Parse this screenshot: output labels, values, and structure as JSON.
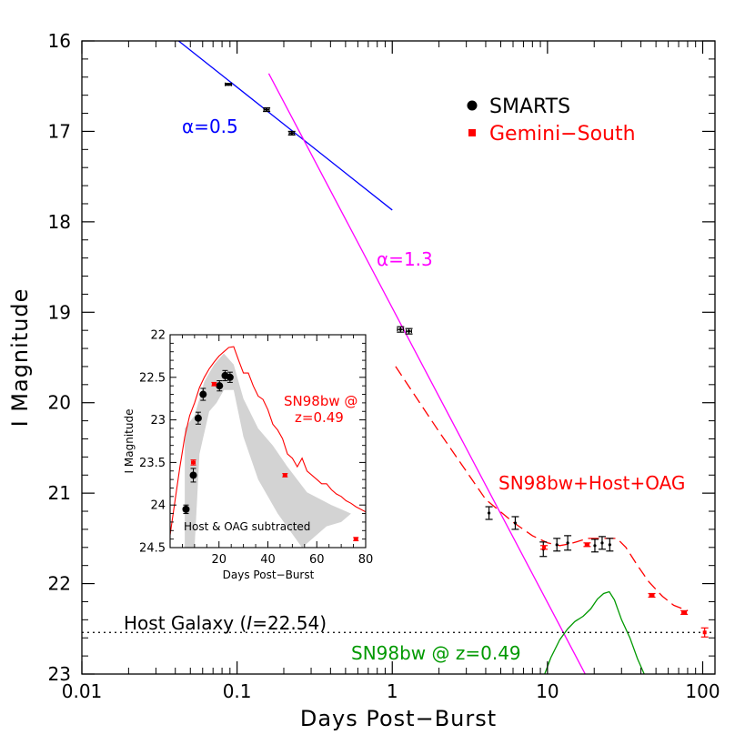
{
  "chart_data": [
    {
      "type": "scatter",
      "xlabel": "Days Post−Burst",
      "ylabel": "I Magnitude",
      "xscale": "log",
      "xlim": [
        0.01,
        120
      ],
      "ylim": [
        23,
        16
      ],
      "y_inverted": true,
      "xticks": [
        "0.01",
        "0.1",
        "1",
        "10",
        "100"
      ],
      "yticks": [
        "16",
        "17",
        "18",
        "19",
        "20",
        "21",
        "22",
        "23"
      ],
      "legend": {
        "placement": "top-right",
        "entries": [
          {
            "label": "SMARTS",
            "color": "#000000",
            "marker": "circle"
          },
          {
            "label": "Gemini−South",
            "color": "#ff0000",
            "marker": "square"
          }
        ]
      },
      "series": [
        {
          "name": "SMARTS",
          "color": "#000000",
          "points": [
            {
              "x": 0.088,
              "y": 16.48,
              "err": 0.01,
              "xerr": 0.004
            },
            {
              "x": 0.155,
              "y": 16.76,
              "err": 0.02,
              "xerr": 0.006
            },
            {
              "x": 0.225,
              "y": 17.02,
              "err": 0.02,
              "xerr": 0.008
            },
            {
              "x": 1.13,
              "y": 19.19,
              "err": 0.03,
              "xerr": 0.05
            },
            {
              "x": 1.28,
              "y": 19.21,
              "err": 0.03,
              "xerr": 0.05
            },
            {
              "x": 4.2,
              "y": 21.22,
              "err": 0.07,
              "xerr": 0
            },
            {
              "x": 6.2,
              "y": 21.33,
              "err": 0.07,
              "xerr": 0
            },
            {
              "x": 9.4,
              "y": 21.62,
              "err": 0.08,
              "xerr": 0
            },
            {
              "x": 11.5,
              "y": 21.57,
              "err": 0.07,
              "xerr": 0
            },
            {
              "x": 13.5,
              "y": 21.55,
              "err": 0.08,
              "xerr": 0
            },
            {
              "x": 20.2,
              "y": 21.58,
              "err": 0.07,
              "xerr": 0
            },
            {
              "x": 22.5,
              "y": 21.55,
              "err": 0.07,
              "xerr": 0
            },
            {
              "x": 25.2,
              "y": 21.57,
              "err": 0.07,
              "xerr": 0
            }
          ]
        },
        {
          "name": "Gemini−South",
          "color": "#ff0000",
          "points": [
            {
              "x": 9.5,
              "y": 21.6,
              "err": 0.02,
              "xerr": 0
            },
            {
              "x": 18.0,
              "y": 21.57,
              "err": 0.02,
              "xerr": 0.5
            },
            {
              "x": 47.0,
              "y": 22.13,
              "err": 0.02,
              "xerr": 1.5
            },
            {
              "x": 76.0,
              "y": 22.32,
              "err": 0.02,
              "xerr": 2.5
            },
            {
              "x": 103.0,
              "y": 22.54,
              "err": 0.05,
              "xerr": 0
            }
          ]
        }
      ],
      "lines": [
        {
          "label": "α=0.5",
          "color": "#0000ff",
          "x": [
            0.042,
            1.0
          ],
          "y": [
            16.0,
            17.87
          ]
        },
        {
          "label": "α=1.3",
          "color": "#ff00ff",
          "x": [
            0.16,
            17.5
          ],
          "y": [
            16.36,
            23.0
          ]
        }
      ],
      "curves": [
        {
          "label": "SN98bw+Host+OAG",
          "color": "#ff0000",
          "dash": "dashed",
          "x": [
            1.05,
            2.0,
            4.0,
            6.0,
            8.0,
            10.0,
            12.0,
            14.0,
            16.0,
            18.0,
            20.0,
            22.0,
            25.0,
            28.0,
            32.0,
            38.0,
            45.0,
            55.0,
            65.0,
            80.0
          ],
          "y": [
            19.6,
            20.32,
            21.07,
            21.32,
            21.47,
            21.55,
            21.58,
            21.56,
            21.53,
            21.5,
            21.5,
            21.5,
            21.5,
            21.5,
            21.6,
            21.8,
            21.98,
            22.14,
            22.24,
            22.3
          ]
        },
        {
          "label": "SN98bw @ z=0.49",
          "color": "#009900",
          "dash": "solid",
          "x": [
            9.6,
            10.5,
            12.0,
            13.5,
            15.0,
            17.0,
            19.0,
            21.0,
            23.0,
            25.0,
            27.0,
            30.0,
            34.0,
            38.0,
            42.0
          ],
          "y": [
            23.0,
            22.82,
            22.62,
            22.5,
            22.42,
            22.36,
            22.28,
            22.17,
            22.11,
            22.09,
            22.18,
            22.4,
            22.6,
            22.83,
            23.0
          ]
        }
      ],
      "hline": {
        "label": "Host Galaxy (I=22.54)",
        "y": 22.54,
        "style": "dotted"
      },
      "annotations": {
        "alpha_blue": "α=0.5",
        "alpha_magenta": "α=1.3",
        "sn_host": "SN98bw+Host+OAG",
        "sn_green": "SN98bw @ z=0.49",
        "host_prefix": "Host Galaxy (",
        "host_italic": "I",
        "host_suffix": "=22.54)"
      }
    },
    {
      "type": "scatter",
      "title": "Host & OAG subtracted",
      "xlabel": "Days Post−Burst",
      "ylabel": "I Magnitude",
      "xlim": [
        0,
        80
      ],
      "ylim": [
        24.5,
        22
      ],
      "y_inverted": true,
      "xticks": [
        "20",
        "40",
        "60",
        "80"
      ],
      "yticks": [
        "22",
        "22.5",
        "23",
        "23.5",
        "24",
        "24.5"
      ],
      "series": [
        {
          "name": "SMARTS",
          "color": "#000000",
          "points": [
            {
              "x": 6.5,
              "y": 24.05,
              "err": 0.05
            },
            {
              "x": 9.5,
              "y": 23.65,
              "err": 0.08
            },
            {
              "x": 11.5,
              "y": 22.98,
              "err": 0.07
            },
            {
              "x": 13.5,
              "y": 22.7,
              "err": 0.07
            },
            {
              "x": 20.2,
              "y": 22.6,
              "err": 0.06
            },
            {
              "x": 22.5,
              "y": 22.48,
              "err": 0.06
            },
            {
              "x": 24.5,
              "y": 22.5,
              "err": 0.06
            }
          ]
        },
        {
          "name": "Gemini−South",
          "color": "#ff0000",
          "points": [
            {
              "x": 9.5,
              "y": 23.5,
              "err": 0.03
            },
            {
              "x": 18.0,
              "y": 22.58,
              "err": 0.02
            },
            {
              "x": 47.0,
              "y": 23.65,
              "err": 0.02
            },
            {
              "x": 76.0,
              "y": 24.4,
              "err": 0.02
            }
          ]
        }
      ],
      "curve": {
        "label_line1": "SN98bw @",
        "label_line2": "z=0.49",
        "color": "#ff0000",
        "x": [
          0,
          2,
          4,
          6,
          8,
          10,
          12,
          14,
          16,
          18,
          20,
          22,
          24,
          26,
          28,
          30,
          32,
          34,
          36,
          38,
          40,
          42,
          44,
          46,
          48,
          50,
          52,
          54,
          56,
          58,
          60,
          62,
          64,
          66,
          68,
          70,
          72,
          74,
          76,
          78,
          80
        ],
        "y": [
          24.35,
          23.95,
          23.55,
          23.2,
          22.95,
          22.8,
          22.62,
          22.5,
          22.4,
          22.32,
          22.25,
          22.2,
          22.15,
          22.14,
          22.3,
          22.45,
          22.45,
          22.6,
          22.72,
          22.76,
          22.88,
          23.05,
          23.12,
          23.22,
          23.4,
          23.45,
          23.55,
          23.45,
          23.6,
          23.65,
          23.7,
          23.75,
          23.75,
          23.82,
          23.87,
          23.9,
          23.95,
          23.98,
          24.02,
          24.05,
          24.08
        ]
      },
      "band": {
        "color": "#d3d3d3",
        "upper": [
          [
            6,
            23.1
          ],
          [
            10,
            22.95
          ],
          [
            14,
            22.55
          ],
          [
            18,
            22.35
          ],
          [
            22,
            22.22
          ],
          [
            26,
            22.35
          ],
          [
            30,
            22.75
          ],
          [
            36,
            23.1
          ],
          [
            42,
            23.3
          ],
          [
            48,
            23.55
          ],
          [
            56,
            23.85
          ],
          [
            66,
            24.0
          ],
          [
            74,
            24.1
          ]
        ],
        "lower": [
          [
            74,
            24.1
          ],
          [
            70,
            24.2
          ],
          [
            64,
            24.25
          ],
          [
            54,
            24.5
          ],
          [
            44,
            24.1
          ],
          [
            36,
            23.7
          ],
          [
            30,
            23.2
          ],
          [
            26,
            22.65
          ],
          [
            22,
            22.65
          ],
          [
            19,
            22.8
          ],
          [
            16,
            22.9
          ],
          [
            12,
            23.4
          ],
          [
            10,
            24.5
          ],
          [
            6,
            24.5
          ]
        ]
      }
    }
  ]
}
